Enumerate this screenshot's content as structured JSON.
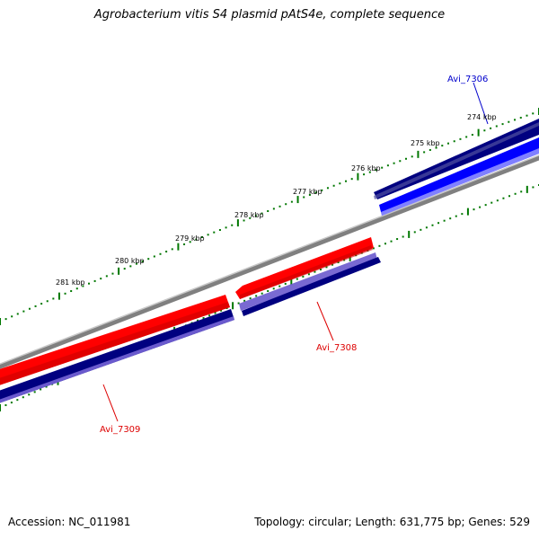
{
  "title": "Agrobacterium vitis S4 plasmid pAtS4e, complete sequence",
  "footer": {
    "accession": "Accession: NC_011981",
    "summary": "Topology: circular; Length: 631,775 bp; Genes: 529"
  },
  "ticks": [
    "274 kbp",
    "275 kbp",
    "276 kbp",
    "277 kbp",
    "278 kbp",
    "279 kbp",
    "280 kbp",
    "281 kbp"
  ],
  "genes": [
    {
      "name": "Avi_7306",
      "color": "#0000cc"
    },
    {
      "name": "Avi_7308",
      "color": "#dd0000"
    },
    {
      "name": "Avi_7309",
      "color": "#dd0000"
    }
  ],
  "colors": {
    "backbone": "#808080",
    "forward_gene": "#ff0000",
    "reverse_gene": "#0000ff",
    "forward_cds": "#000080",
    "reverse_cds": "#6a5acd",
    "tick": "#007700"
  }
}
